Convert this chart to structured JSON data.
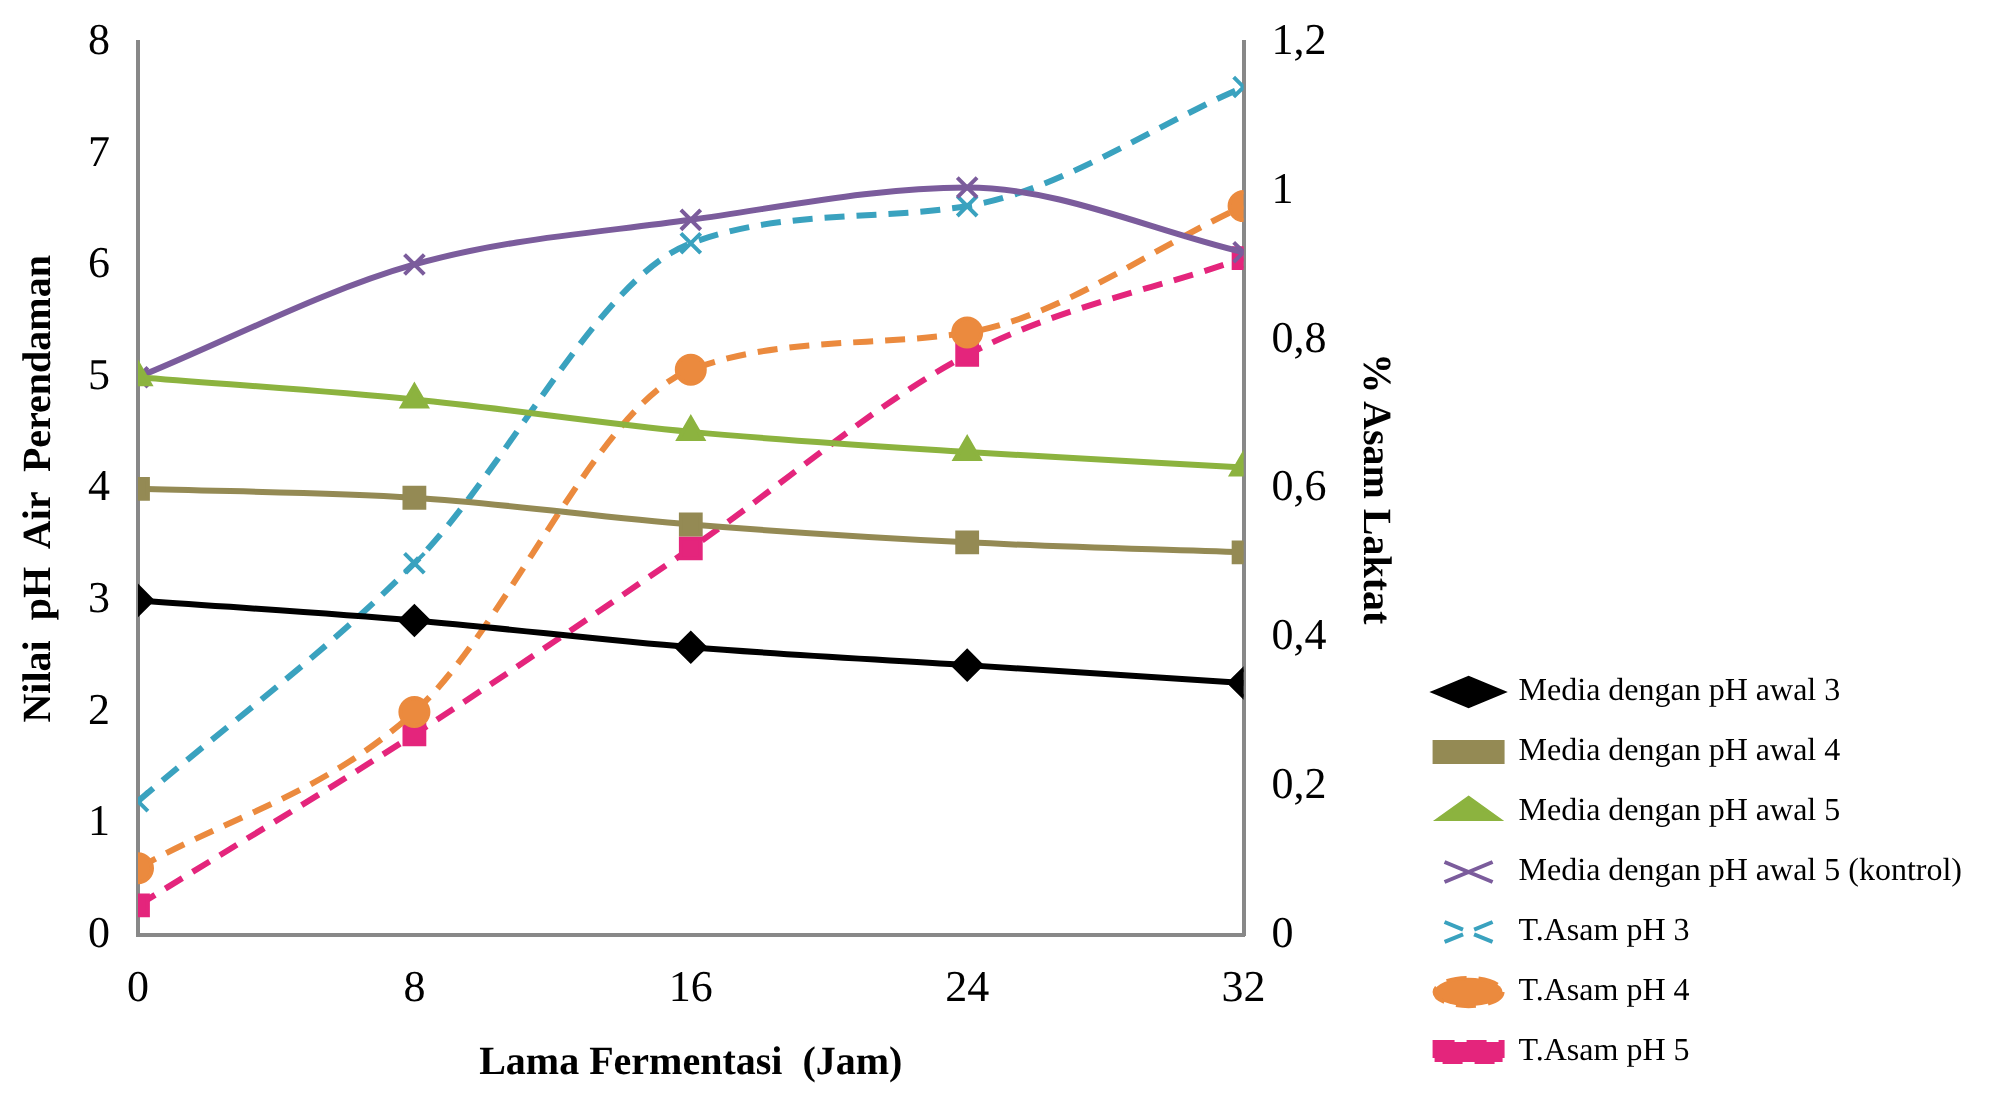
{
  "chart_data": {
    "type": "line",
    "xlabel": "Lama Fermentasi  (Jam)",
    "ylabel": "Nilai  pH  Air  Perendaman",
    "y2label": "% Asam Laktat",
    "x": [
      0,
      8,
      16,
      24,
      32
    ],
    "xlim": [
      0,
      32
    ],
    "xticks": [
      0,
      8,
      16,
      24,
      32
    ],
    "ylim": [
      0,
      8
    ],
    "yticks": [
      0,
      1,
      2,
      3,
      4,
      5,
      6,
      7,
      8
    ],
    "y2lim": [
      0,
      1.2
    ],
    "y2ticks": [
      {
        "value": 0,
        "label": "0"
      },
      {
        "value": 0.2,
        "label": "0,2"
      },
      {
        "value": 0.4,
        "label": "0,4"
      },
      {
        "value": 0.6,
        "label": "0,6"
      },
      {
        "value": 0.8,
        "label": "0,8"
      },
      {
        "value": 1,
        "label": "1"
      },
      {
        "value": 1.2,
        "label": "1,2"
      }
    ],
    "grid": false,
    "legend": "right",
    "series": [
      {
        "name": "Media dengan pH awal 3",
        "color": "#000000",
        "marker": "diamond",
        "line_style": "solid",
        "values": [
          3.0,
          2.82,
          2.58,
          2.42,
          2.26
        ]
      },
      {
        "name": "Media dengan pH awal 4",
        "color": "#948a54",
        "marker": "square",
        "line_style": "solid",
        "values": [
          4.0,
          3.92,
          3.68,
          3.52,
          3.43
        ]
      },
      {
        "name": "Media dengan pH awal 5",
        "color": "#8cb33f",
        "marker": "triangle",
        "line_style": "solid",
        "values": [
          5.0,
          4.8,
          4.51,
          4.33,
          4.19
        ]
      },
      {
        "name": "Media dengan pH awal 5 (kontrol)",
        "color": "#7b5c9c",
        "marker": "cross",
        "line_style": "solid",
        "values": [
          5.0,
          6.01,
          6.41,
          6.7,
          6.12
        ]
      },
      {
        "name": "T.Asam pH 3",
        "color": "#3aa2bf",
        "marker": "cross",
        "line_style": "dashed",
        "axis": "y2",
        "values": [
          0.18,
          0.5,
          0.93,
          0.98,
          1.14
        ]
      },
      {
        "name": "T.Asam pH 4",
        "color": "#eb8a3e",
        "marker": "circle",
        "line_style": "dashed",
        "axis": "y2",
        "values": [
          0.09,
          0.3,
          0.76,
          0.81,
          0.98
        ]
      },
      {
        "name": "T.Asam pH 5",
        "color": "#e4257c",
        "marker": "square",
        "line_style": "dashed",
        "axis": "y2",
        "values": [
          0.04,
          0.27,
          0.52,
          0.78,
          0.91
        ]
      }
    ]
  }
}
